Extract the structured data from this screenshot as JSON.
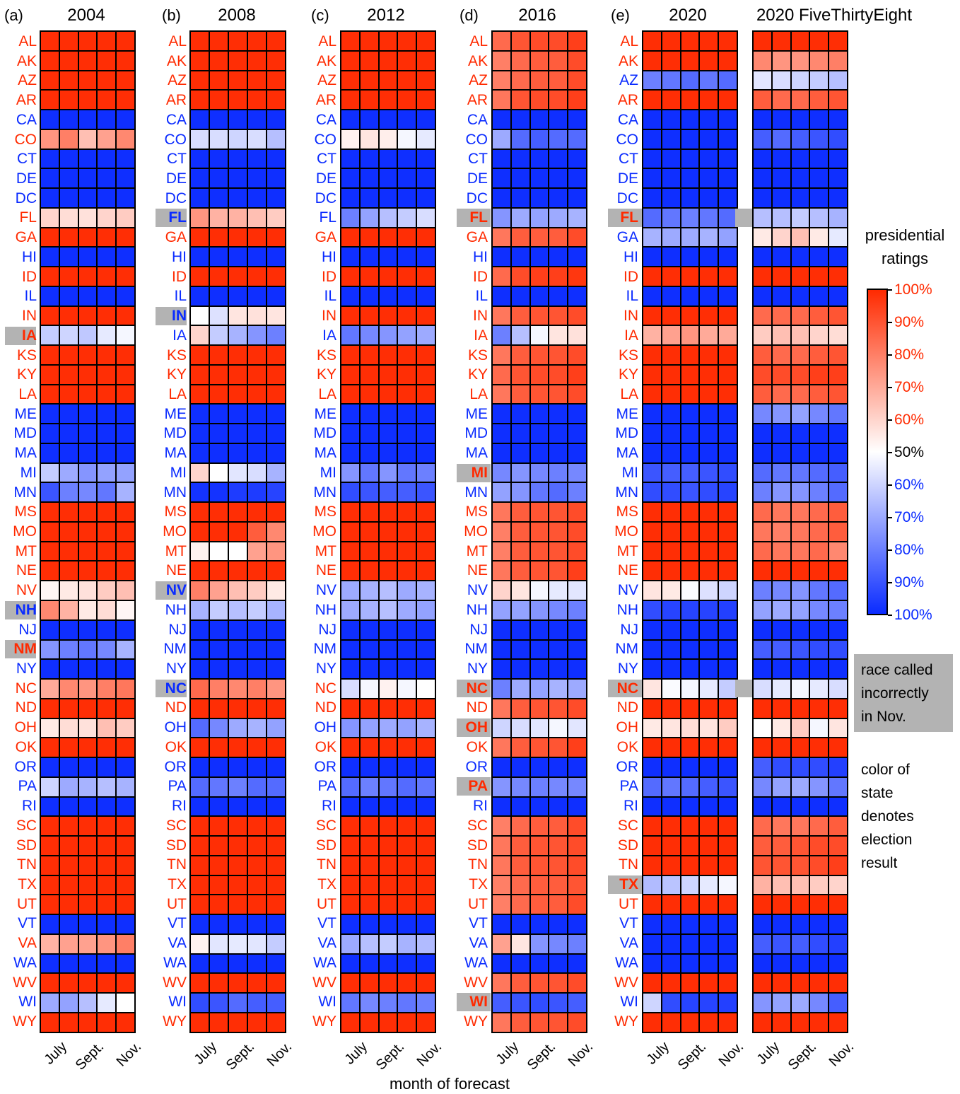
{
  "chart_data": {
    "type": "heatmap",
    "states": [
      "AL",
      "AK",
      "AZ",
      "AR",
      "CA",
      "CO",
      "CT",
      "DE",
      "DC",
      "FL",
      "GA",
      "HI",
      "ID",
      "IL",
      "IN",
      "IA",
      "KS",
      "KY",
      "LA",
      "ME",
      "MD",
      "MA",
      "MI",
      "MN",
      "MS",
      "MO",
      "MT",
      "NE",
      "NV",
      "NH",
      "NJ",
      "NM",
      "NY",
      "NC",
      "ND",
      "OH",
      "OK",
      "OR",
      "PA",
      "RI",
      "SC",
      "SD",
      "TN",
      "TX",
      "UT",
      "VT",
      "VA",
      "WA",
      "WV",
      "WI",
      "WY"
    ],
    "value_encoding": "probability of forecast winner; R = Republican (red), D = Democratic (blue)",
    "colorbar": {
      "title": [
        "presidential",
        "ratings"
      ],
      "red_ticks": [
        "100%",
        "90%",
        "80%",
        "70%",
        "60%"
      ],
      "center_tick": "50%",
      "blue_ticks": [
        "60%",
        "70%",
        "80%",
        "90%",
        "100%"
      ],
      "red_color": "#ff2a00",
      "blue_color": "#0a2bff"
    },
    "xtick_labels": [
      "July",
      "Sept.",
      "Nov."
    ],
    "xlabel": "month of forecast",
    "notes": {
      "miscalled": [
        "race called",
        "incorrectly",
        "in Nov."
      ],
      "color_meaning": [
        "color of",
        "state",
        "denotes",
        "election",
        "result"
      ]
    },
    "panels": [
      {
        "label": "(a)",
        "title": "2004",
        "winner": "RRRRDRDDDRRDRDRRRRRDDDDDRRRRRDDRDRRRRDDDRRRRRDRDRDR",
        "miscalled": [
          "IA",
          "NH",
          "NM"
        ],
        "overrides": {
          "CO": [
            "R:0.75",
            "R:0.80",
            "R:0.65",
            "R:0.72",
            "R:0.78"
          ],
          "FL": [
            "R:0.60",
            "R:0.58",
            "R:0.57",
            "R:0.60",
            "R:0.62"
          ],
          "IA": [
            "D:0.62",
            "D:0.60",
            "D:0.63",
            "D:0.55",
            "D:0.52"
          ],
          "MI": [
            "D:0.62",
            "D:0.70",
            "D:0.75",
            "D:0.72",
            "D:0.72"
          ],
          "MN": [
            "D:0.90",
            "D:0.80",
            "D:0.78",
            "D:0.82",
            "D:0.68"
          ],
          "NV": [
            "R:0.52",
            "R:0.55",
            "R:0.57",
            "R:0.62",
            "R:0.65"
          ],
          "NH": [
            "R:0.78",
            "R:0.68",
            "R:0.55",
            "R:0.58",
            "R:0.52"
          ],
          "NM": [
            "D:0.75",
            "D:0.80",
            "D:0.82",
            "D:0.78",
            "D:0.68"
          ],
          "NC": [
            "R:0.70",
            "R:0.78",
            "R:0.75",
            "R:0.80",
            "R:0.82"
          ],
          "OH": [
            "R:0.55",
            "R:0.58",
            "R:0.57",
            "R:0.65",
            "R:0.62"
          ],
          "PA": [
            "D:0.60",
            "D:0.70",
            "D:0.68",
            "D:0.65",
            "D:0.68"
          ],
          "VA": [
            "R:0.68",
            "R:0.72",
            "R:0.72",
            "R:0.75",
            "R:0.80"
          ],
          "WI": [
            "D:0.70",
            "D:0.72",
            "D:0.65",
            "D:0.55",
            "D:0.50"
          ]
        }
      },
      {
        "label": "(b)",
        "title": "2008",
        "winner": "RRRRDDDDDDRDRDDDRRRDDDDDRRRRDDDDDDRDRDDDRRRRRDDDRDR",
        "miscalled": [
          "FL",
          "IN",
          "NV",
          "NC"
        ],
        "overrides": {
          "CO": [
            "D:0.58",
            "D:0.58",
            "D:0.60",
            "D:0.58",
            "D:0.65"
          ],
          "FL": [
            "R:0.75",
            "R:0.68",
            "R:0.68",
            "R:0.65",
            "R:0.62"
          ],
          "IN": [
            "R:0.50",
            "D:0.57",
            "R:0.56",
            "R:0.57",
            "R:0.56"
          ],
          "IA": [
            "R:0.60",
            "D:0.62",
            "D:0.68",
            "D:0.75",
            "D:0.80"
          ],
          "MI": [
            "R:0.60",
            "D:0.50",
            "D:0.56",
            "D:0.58",
            "D:0.68"
          ],
          "MO": [
            "R:0.99",
            "R:0.99",
            "R:0.99",
            "R:0.88",
            "R:0.78"
          ],
          "MT": [
            "R:0.53",
            "R:0.50",
            "R:0.50",
            "R:0.72",
            "R:0.75"
          ],
          "NV": [
            "R:0.80",
            "R:0.72",
            "R:0.65",
            "R:0.62",
            "R:0.55"
          ],
          "NH": [
            "D:0.68",
            "D:0.62",
            "D:0.65",
            "D:0.62",
            "D:0.68"
          ],
          "NC": [
            "R:0.85",
            "R:0.80",
            "R:0.78",
            "R:0.80",
            "R:0.75"
          ],
          "OH": [
            "D:0.85",
            "D:0.78",
            "D:0.70",
            "D:0.68",
            "D:0.72"
          ],
          "PA": [
            "D:0.85",
            "D:0.82",
            "D:0.80",
            "D:0.85",
            "D:0.85"
          ],
          "VA": [
            "R:0.53",
            "D:0.56",
            "D:0.55",
            "D:0.56",
            "D:0.62"
          ],
          "WI": [
            "D:0.92",
            "D:0.90",
            "D:0.85",
            "D:0.88",
            "D:0.88"
          ],
          "MN": [
            "D:0.98",
            "D:0.98",
            "D:0.96",
            "D:0.96",
            "D:0.94"
          ]
        }
      },
      {
        "label": "(c)",
        "title": "2012",
        "winner": "RRRRDDDDDDRDRDRDRRRDDDDDRRRRDDDDDRRDRDDDRRRRRDDDRDR",
        "miscalled": [],
        "overrides": {
          "CO": [
            "R:0.53",
            "R:0.56",
            "R:0.54",
            "D:0.52",
            "D:0.55"
          ],
          "FL": [
            "D:0.80",
            "D:0.72",
            "D:0.65",
            "D:0.62",
            "D:0.58"
          ],
          "IA": [
            "D:0.82",
            "D:0.78",
            "D:0.75",
            "D:0.72",
            "D:0.70"
          ],
          "MI": [
            "D:0.75",
            "D:0.82",
            "D:0.75",
            "D:0.82",
            "D:0.80"
          ],
          "MN": [
            "D:0.92",
            "D:0.90",
            "D:0.88",
            "D:0.88",
            "D:0.90"
          ],
          "NV": [
            "D:0.70",
            "D:0.68",
            "D:0.65",
            "D:0.70",
            "D:0.68"
          ],
          "NH": [
            "D:0.70",
            "D:0.68",
            "D:0.65",
            "D:0.70",
            "D:0.72"
          ],
          "NC": [
            "D:0.58",
            "D:0.52",
            "R:0.53",
            "D:0.52",
            "D:0.50"
          ],
          "OH": [
            "D:0.75",
            "D:0.72",
            "D:0.70",
            "D:0.72",
            "D:0.68"
          ],
          "PA": [
            "D:0.85",
            "D:0.80",
            "D:0.82",
            "D:0.85",
            "D:0.82"
          ],
          "VA": [
            "D:0.70",
            "D:0.65",
            "D:0.62",
            "D:0.68",
            "D:0.66"
          ],
          "WI": [
            "D:0.82",
            "D:0.78",
            "D:0.80",
            "D:0.82",
            "D:0.80"
          ]
        }
      },
      {
        "label": "(d)",
        "title": "2016",
        "winner": "RRRRDDDDDRRDRDRRRRRDDDRDRRRRDDDDDRRRRDRDRRRRRDDDRRR",
        "miscalled": [
          "FL",
          "MI",
          "NC",
          "OH",
          "PA",
          "WI"
        ],
        "overrides": {
          "AL": [
            "R:0.85",
            "R:0.90",
            "R:0.92",
            "R:0.92",
            "R:0.95"
          ],
          "AK": [
            "R:0.80",
            "R:0.85",
            "R:0.88",
            "R:0.88",
            "R:0.92"
          ],
          "AZ": [
            "R:0.80",
            "R:0.85",
            "R:0.88",
            "R:0.88",
            "R:0.92"
          ],
          "AR": [
            "R:0.82",
            "R:0.90",
            "R:0.92",
            "R:0.92",
            "R:0.95"
          ],
          "CO": [
            "D:0.70",
            "D:0.85",
            "D:0.88",
            "D:0.85",
            "D:0.85"
          ],
          "FL": [
            "D:0.75",
            "D:0.70",
            "D:0.72",
            "D:0.70",
            "D:0.68"
          ],
          "GA": [
            "R:0.82",
            "R:0.88",
            "R:0.88",
            "R:0.88",
            "R:0.92"
          ],
          "ID": [
            "R:0.85",
            "R:0.92",
            "R:0.95",
            "R:0.95",
            "R:0.97"
          ],
          "IN": [
            "R:0.82",
            "R:0.88",
            "R:0.90",
            "R:0.90",
            "R:0.92"
          ],
          "IA": [
            "D:0.80",
            "D:0.65",
            "D:0.52",
            "R:0.56",
            "R:0.57"
          ],
          "KS": [
            "R:0.82",
            "R:0.88",
            "R:0.90",
            "R:0.90",
            "R:0.92"
          ],
          "KY": [
            "R:0.85",
            "R:0.90",
            "R:0.92",
            "R:0.92",
            "R:0.95"
          ],
          "LA": [
            "R:0.82",
            "R:0.88",
            "R:0.90",
            "R:0.90",
            "R:0.92"
          ],
          "MI": [
            "D:0.78",
            "D:0.75",
            "D:0.78",
            "D:0.80",
            "D:0.78"
          ],
          "MN": [
            "D:0.72",
            "D:0.75",
            "D:0.82",
            "D:0.85",
            "D:0.80"
          ],
          "MS": [
            "R:0.82",
            "R:0.88",
            "R:0.90",
            "R:0.90",
            "R:0.92"
          ],
          "MO": [
            "R:0.80",
            "R:0.88",
            "R:0.90",
            "R:0.90",
            "R:0.92"
          ],
          "MT": [
            "R:0.80",
            "R:0.88",
            "R:0.90",
            "R:0.90",
            "R:0.92"
          ],
          "NE": [
            "R:0.82",
            "R:0.88",
            "R:0.90",
            "R:0.90",
            "R:0.95"
          ],
          "NV": [
            "R:0.60",
            "R:0.56",
            "D:0.52",
            "D:0.55",
            "D:0.56"
          ],
          "NH": [
            "D:0.72",
            "D:0.72",
            "D:0.75",
            "D:0.78",
            "D:0.80"
          ],
          "NC": [
            "D:0.80",
            "D:0.70",
            "D:0.72",
            "D:0.68",
            "D:0.70"
          ],
          "ND": [
            "R:0.82",
            "R:0.88",
            "R:0.90",
            "R:0.90",
            "R:0.92"
          ],
          "OH": [
            "D:0.60",
            "D:0.58",
            "D:0.56",
            "D:0.52",
            "D:0.56"
          ],
          "OK": [
            "R:0.82",
            "R:0.88",
            "R:0.90",
            "R:0.90",
            "R:0.95"
          ],
          "PA": [
            "D:0.75",
            "D:0.78",
            "D:0.80",
            "D:0.78",
            "D:0.78"
          ],
          "SC": [
            "R:0.80",
            "R:0.85",
            "R:0.88",
            "R:0.88",
            "R:0.92"
          ],
          "SD": [
            "R:0.82",
            "R:0.88",
            "R:0.90",
            "R:0.90",
            "R:0.92"
          ],
          "TN": [
            "R:0.82",
            "R:0.88",
            "R:0.90",
            "R:0.90",
            "R:0.92"
          ],
          "TX": [
            "R:0.80",
            "R:0.85",
            "R:0.88",
            "R:0.88",
            "R:0.90"
          ],
          "UT": [
            "R:0.80",
            "R:0.85",
            "R:0.88",
            "R:0.88",
            "R:0.92"
          ],
          "VA": [
            "R:0.72",
            "R:0.56",
            "D:0.75",
            "D:0.78",
            "D:0.80"
          ],
          "WI": [
            "D:0.88",
            "D:0.90",
            "D:0.92",
            "D:0.90",
            "D:0.88"
          ],
          "WV": [
            "R:0.82",
            "R:0.88",
            "R:0.90",
            "R:0.90",
            "R:0.92"
          ],
          "WY": [
            "R:0.82",
            "R:0.88",
            "R:0.90",
            "R:0.90",
            "R:0.92"
          ]
        }
      },
      {
        "label": "(e)",
        "title": "2020",
        "winner": "RRDRDDDDDRDDRDRRRRRDDDDDRRRRDDDDDRRRRDDDRRRRRDDDRDR",
        "miscalled": [
          "FL",
          "NC",
          "TX"
        ],
        "overrides": {
          "AZ": [
            "D:0.80",
            "D:0.82",
            "D:0.85",
            "D:0.82",
            "D:0.85"
          ],
          "FL": [
            "D:0.85",
            "D:0.82",
            "D:0.80",
            "D:0.82",
            "D:0.85"
          ],
          "GA": [
            "D:0.68",
            "D:0.70",
            "D:0.70",
            "D:0.68",
            "D:0.72"
          ],
          "IA": [
            "R:0.68",
            "R:0.72",
            "R:0.75",
            "R:0.70",
            "R:0.70"
          ],
          "MI": [
            "D:0.90",
            "D:0.88",
            "D:0.88",
            "D:0.90",
            "D:0.92"
          ],
          "MN": [
            "D:0.92",
            "D:0.92",
            "D:0.90",
            "D:0.92",
            "D:0.94"
          ],
          "NV": [
            "R:0.56",
            "R:0.55",
            "D:0.51",
            "D:0.57",
            "D:0.60"
          ],
          "NH": [
            "D:0.92",
            "D:0.94",
            "D:0.94",
            "D:0.94",
            "D:0.95"
          ],
          "NC": [
            "R:0.56",
            "D:0.51",
            "D:0.52",
            "D:0.55",
            "D:0.62"
          ],
          "OH": [
            "R:0.55",
            "R:0.56",
            "R:0.58",
            "R:0.56",
            "R:0.62"
          ],
          "PA": [
            "D:0.85",
            "D:0.82",
            "D:0.85",
            "D:0.88",
            "D:0.90"
          ],
          "TX": [
            "D:0.66",
            "D:0.64",
            "D:0.60",
            "D:0.55",
            "D:0.52"
          ],
          "WI": [
            "D:0.60",
            "D:0.92",
            "D:0.94",
            "D:0.94",
            "D:0.95"
          ]
        }
      },
      {
        "label": "",
        "title": "2020 FiveThirtyEight",
        "winner": "RRDRDDDDDRRDRDRRRRRDDDDDRRRRDDDDDDRRRDDDRRRRRDDDRDR",
        "miscalled": [],
        "overrides": {
          "AK": [
            "R:0.78",
            "R:0.75",
            "R:0.75",
            "R:0.78",
            "R:0.80"
          ],
          "AZ": [
            "D:0.56",
            "D:0.58",
            "D:0.60",
            "D:0.62",
            "D:0.65"
          ],
          "AR": [
            "R:0.88",
            "R:0.85",
            "R:0.85",
            "R:0.88",
            "R:0.90"
          ],
          "CO": [
            "D:0.88",
            "D:0.85",
            "D:0.88",
            "D:0.90",
            "D:0.92"
          ],
          "FL": [
            "D:0.65",
            "D:0.65",
            "D:0.62",
            "D:0.65",
            "D:0.68"
          ],
          "GA": [
            "R:0.55",
            "R:0.60",
            "R:0.65",
            "R:0.55",
            "D:0.55"
          ],
          "IN": [
            "R:0.85",
            "R:0.85",
            "R:0.85",
            "R:0.88",
            "R:0.90"
          ],
          "IA": [
            "R:0.62",
            "R:0.65",
            "R:0.65",
            "R:0.60",
            "R:0.58"
          ],
          "KS": [
            "R:0.88",
            "R:0.85",
            "R:0.85",
            "R:0.88",
            "R:0.90"
          ],
          "KY": [
            "R:0.92",
            "R:0.92",
            "R:0.92",
            "R:0.95",
            "R:0.95"
          ],
          "LA": [
            "R:0.88",
            "R:0.85",
            "R:0.85",
            "R:0.88",
            "R:0.90"
          ],
          "ME": [
            "D:0.78",
            "D:0.75",
            "D:0.72",
            "D:0.78",
            "D:0.82"
          ],
          "MI": [
            "D:0.85",
            "D:0.82",
            "D:0.82",
            "D:0.85",
            "D:0.88"
          ],
          "MN": [
            "D:0.80",
            "D:0.75",
            "D:0.75",
            "D:0.80",
            "D:0.85"
          ],
          "MS": [
            "R:0.85",
            "R:0.82",
            "R:0.82",
            "R:0.85",
            "R:0.88"
          ],
          "MO": [
            "R:0.82",
            "R:0.80",
            "R:0.82",
            "R:0.85",
            "R:0.88"
          ],
          "MT": [
            "R:0.85",
            "R:0.82",
            "R:0.82",
            "R:0.85",
            "R:0.78"
          ],
          "NV": [
            "D:0.80",
            "D:0.78",
            "D:0.75",
            "D:0.82",
            "D:0.85"
          ],
          "NH": [
            "D:0.72",
            "D:0.70",
            "D:0.72",
            "D:0.78",
            "D:0.80"
          ],
          "NM": [
            "D:0.88",
            "D:0.88",
            "D:0.90",
            "D:0.92",
            "D:0.92"
          ],
          "NC": [
            "D:0.58",
            "D:0.55",
            "D:0.52",
            "D:0.55",
            "D:0.58"
          ],
          "OH": [
            "R:0.50",
            "R:0.55",
            "R:0.62",
            "D:0.52",
            "R:0.56"
          ],
          "OR": [
            "D:0.88",
            "D:0.92",
            "D:0.92",
            "D:0.92",
            "D:0.95"
          ],
          "PA": [
            "D:0.78",
            "D:0.72",
            "D:0.70",
            "D:0.75",
            "D:0.82"
          ],
          "SC": [
            "R:0.85",
            "R:0.82",
            "R:0.82",
            "R:0.85",
            "R:0.88"
          ],
          "SD": [
            "R:0.88",
            "R:0.88",
            "R:0.90",
            "R:0.92",
            "R:0.92"
          ],
          "TN": [
            "R:0.90",
            "R:0.90",
            "R:0.90",
            "R:0.92",
            "R:0.95"
          ],
          "TX": [
            "R:0.68",
            "R:0.65",
            "R:0.65",
            "R:0.62",
            "R:0.60"
          ],
          "VA": [
            "D:0.88",
            "D:0.90",
            "D:0.88",
            "D:0.92",
            "D:0.95"
          ],
          "WI": [
            "D:0.75",
            "D:0.72",
            "D:0.70",
            "D:0.78",
            "D:0.88"
          ]
        }
      }
    ]
  }
}
